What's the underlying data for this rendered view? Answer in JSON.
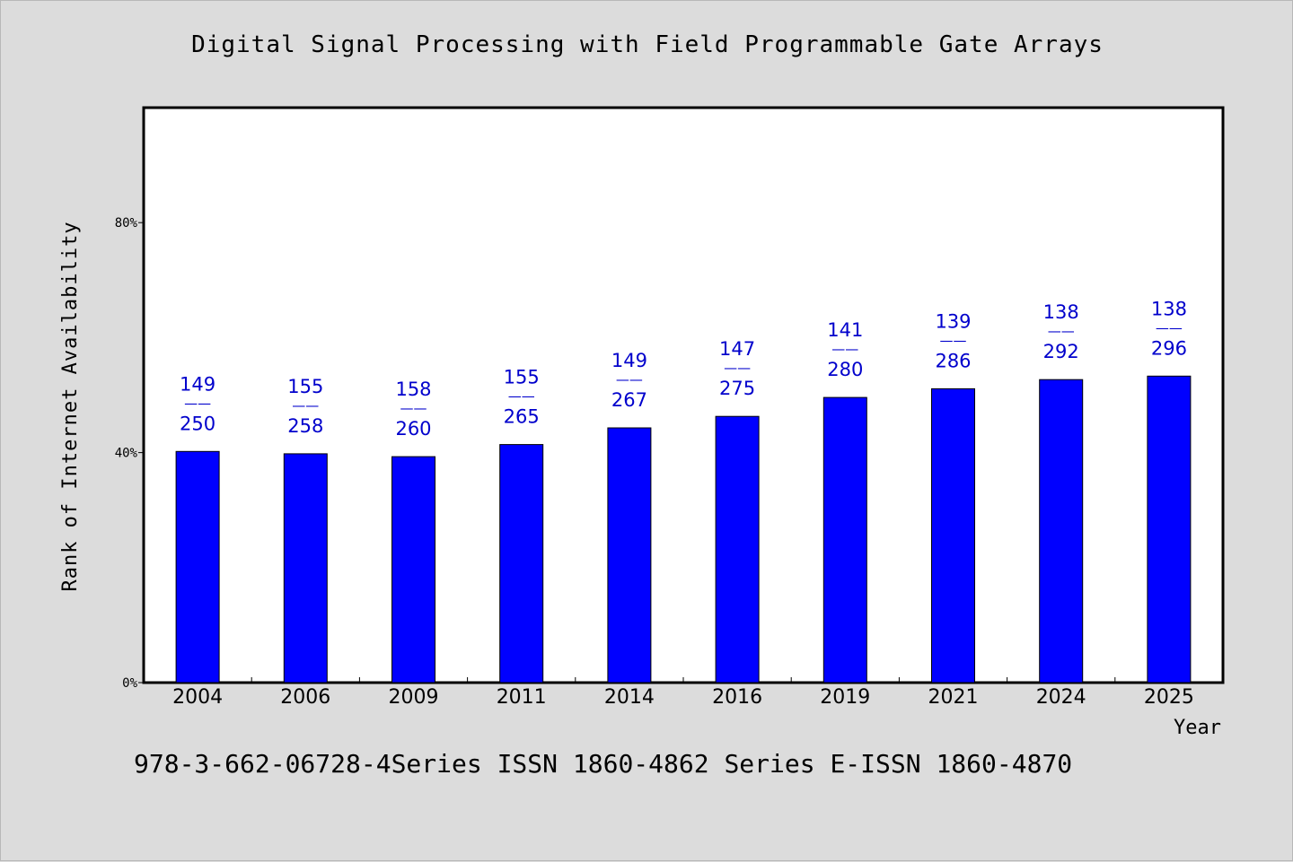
{
  "chart_data": {
    "type": "bar",
    "title": "Digital Signal Processing with Field Programmable Gate Arrays",
    "xlabel": "Year",
    "ylabel": "Rank of Internet Availability",
    "ylim": [
      0,
      100
    ],
    "yticks": [
      0,
      40,
      80
    ],
    "ytick_labels": [
      "0%",
      "40%",
      "80%"
    ],
    "categories": [
      "2004",
      "2006",
      "2009",
      "2011",
      "2014",
      "2016",
      "2019",
      "2021",
      "2024",
      "2025"
    ],
    "values": [
      40.2,
      39.8,
      39.3,
      41.4,
      44.3,
      46.3,
      49.6,
      51.1,
      52.7,
      53.3
    ],
    "data_labels": [
      {
        "top": "149",
        "sep": "——",
        "bottom": "250"
      },
      {
        "top": "155",
        "sep": "——",
        "bottom": "258"
      },
      {
        "top": "158",
        "sep": "——",
        "bottom": "260"
      },
      {
        "top": "155",
        "sep": "——",
        "bottom": "265"
      },
      {
        "top": "149",
        "sep": "——",
        "bottom": "267"
      },
      {
        "top": "147",
        "sep": "——",
        "bottom": "275"
      },
      {
        "top": "141",
        "sep": "——",
        "bottom": "280"
      },
      {
        "top": "139",
        "sep": "——",
        "bottom": "286"
      },
      {
        "top": "138",
        "sep": "——",
        "bottom": "292"
      },
      {
        "top": "138",
        "sep": "——",
        "bottom": "296"
      }
    ],
    "grid": false,
    "bar_color": "#0000ff",
    "label_color": "#0000cc"
  },
  "footer": "978-3-662-06728-4Series ISSN 1860-4862 Series E-ISSN 1860-4870"
}
